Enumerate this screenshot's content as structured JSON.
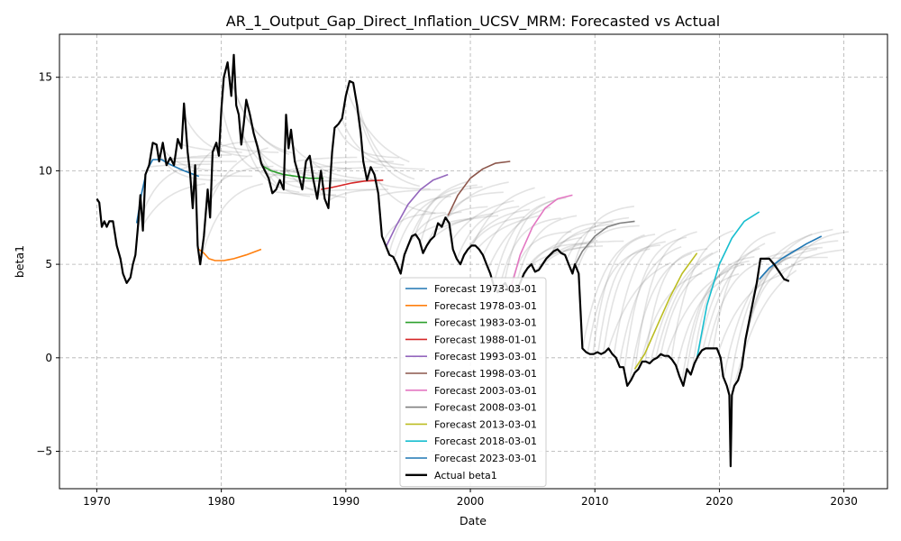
{
  "chart_data": {
    "type": "line",
    "title": "AR_1_Output_Gap_Direct_Inflation_UCSV_MRM: Forecasted vs Actual",
    "xlabel": "Date",
    "ylabel": "beta1",
    "xlim": [
      1967.0,
      2033.5
    ],
    "ylim": [
      -7.0,
      17.3
    ],
    "x_ticks": [
      1970,
      1980,
      1990,
      2000,
      2010,
      2020,
      2030
    ],
    "y_ticks": [
      -5,
      0,
      5,
      10,
      15
    ],
    "y_tick_labels": [
      "−5",
      "0",
      "5",
      "10",
      "15"
    ],
    "grid": true,
    "legend_position": "lower center",
    "actual": {
      "name": "Actual beta1",
      "color": "#000000",
      "points": [
        [
          1970.0,
          8.5
        ],
        [
          1970.2,
          8.3
        ],
        [
          1970.4,
          7.0
        ],
        [
          1970.6,
          7.3
        ],
        [
          1970.8,
          7.0
        ],
        [
          1971.0,
          7.3
        ],
        [
          1971.3,
          7.3
        ],
        [
          1971.6,
          6.0
        ],
        [
          1971.9,
          5.3
        ],
        [
          1972.1,
          4.5
        ],
        [
          1972.4,
          4.0
        ],
        [
          1972.7,
          4.3
        ],
        [
          1972.9,
          5.0
        ],
        [
          1973.1,
          5.5
        ],
        [
          1973.3,
          7.0
        ],
        [
          1973.5,
          8.7
        ],
        [
          1973.7,
          6.8
        ],
        [
          1973.9,
          9.8
        ],
        [
          1974.2,
          10.3
        ],
        [
          1974.5,
          11.5
        ],
        [
          1974.8,
          11.4
        ],
        [
          1975.0,
          10.5
        ],
        [
          1975.3,
          11.5
        ],
        [
          1975.6,
          10.3
        ],
        [
          1975.9,
          10.7
        ],
        [
          1976.2,
          10.3
        ],
        [
          1976.5,
          11.7
        ],
        [
          1976.8,
          11.2
        ],
        [
          1977.0,
          13.6
        ],
        [
          1977.3,
          11.0
        ],
        [
          1977.5,
          9.8
        ],
        [
          1977.7,
          8.0
        ],
        [
          1977.9,
          10.3
        ],
        [
          1978.1,
          6.0
        ],
        [
          1978.3,
          5.0
        ],
        [
          1978.6,
          6.5
        ],
        [
          1978.9,
          9.0
        ],
        [
          1979.1,
          7.5
        ],
        [
          1979.3,
          11.0
        ],
        [
          1979.6,
          11.5
        ],
        [
          1979.8,
          10.8
        ],
        [
          1980.0,
          13.3
        ],
        [
          1980.2,
          15.0
        ],
        [
          1980.5,
          15.8
        ],
        [
          1980.8,
          14.0
        ],
        [
          1981.0,
          16.2
        ],
        [
          1981.2,
          13.5
        ],
        [
          1981.4,
          13.0
        ],
        [
          1981.6,
          11.4
        ],
        [
          1981.8,
          12.5
        ],
        [
          1982.0,
          13.8
        ],
        [
          1982.3,
          13.0
        ],
        [
          1982.6,
          12.0
        ],
        [
          1982.9,
          11.3
        ],
        [
          1983.2,
          10.4
        ],
        [
          1983.5,
          10.0
        ],
        [
          1983.8,
          9.6
        ],
        [
          1984.1,
          8.8
        ],
        [
          1984.4,
          9.0
        ],
        [
          1984.7,
          9.5
        ],
        [
          1985.0,
          9.0
        ],
        [
          1985.2,
          13.0
        ],
        [
          1985.4,
          11.2
        ],
        [
          1985.6,
          12.2
        ],
        [
          1985.9,
          10.5
        ],
        [
          1986.2,
          9.8
        ],
        [
          1986.5,
          9.0
        ],
        [
          1986.8,
          10.5
        ],
        [
          1987.1,
          10.8
        ],
        [
          1987.4,
          9.5
        ],
        [
          1987.7,
          8.5
        ],
        [
          1988.0,
          10.0
        ],
        [
          1988.3,
          8.5
        ],
        [
          1988.6,
          8.0
        ],
        [
          1988.9,
          11.0
        ],
        [
          1989.1,
          12.3
        ],
        [
          1989.4,
          12.5
        ],
        [
          1989.7,
          12.8
        ],
        [
          1990.0,
          14.0
        ],
        [
          1990.3,
          14.8
        ],
        [
          1990.6,
          14.7
        ],
        [
          1990.9,
          13.5
        ],
        [
          1991.2,
          12.0
        ],
        [
          1991.4,
          10.5
        ],
        [
          1991.7,
          9.5
        ],
        [
          1992.0,
          10.2
        ],
        [
          1992.3,
          9.8
        ],
        [
          1992.6,
          8.8
        ],
        [
          1992.9,
          6.5
        ],
        [
          1993.2,
          6.0
        ],
        [
          1993.5,
          5.5
        ],
        [
          1993.8,
          5.4
        ],
        [
          1994.1,
          5.0
        ],
        [
          1994.4,
          4.5
        ],
        [
          1994.7,
          5.5
        ],
        [
          1995.0,
          6.0
        ],
        [
          1995.3,
          6.5
        ],
        [
          1995.6,
          6.6
        ],
        [
          1995.9,
          6.3
        ],
        [
          1996.2,
          5.6
        ],
        [
          1996.5,
          6.0
        ],
        [
          1996.8,
          6.3
        ],
        [
          1997.1,
          6.5
        ],
        [
          1997.4,
          7.2
        ],
        [
          1997.7,
          7.0
        ],
        [
          1998.0,
          7.5
        ],
        [
          1998.3,
          7.2
        ],
        [
          1998.6,
          5.8
        ],
        [
          1998.9,
          5.3
        ],
        [
          1999.2,
          5.0
        ],
        [
          1999.5,
          5.5
        ],
        [
          1999.8,
          5.8
        ],
        [
          2000.1,
          6.0
        ],
        [
          2000.4,
          6.0
        ],
        [
          2000.7,
          5.8
        ],
        [
          2001.0,
          5.5
        ],
        [
          2001.3,
          5.0
        ],
        [
          2001.6,
          4.5
        ],
        [
          2001.9,
          3.8
        ],
        [
          2002.2,
          3.5
        ],
        [
          2002.5,
          3.8
        ],
        [
          2002.8,
          4.0
        ],
        [
          2003.1,
          3.6
        ],
        [
          2003.4,
          3.5
        ],
        [
          2003.7,
          3.6
        ],
        [
          2004.0,
          4.0
        ],
        [
          2004.3,
          4.5
        ],
        [
          2004.6,
          4.8
        ],
        [
          2004.9,
          5.0
        ],
        [
          2005.2,
          4.6
        ],
        [
          2005.5,
          4.7
        ],
        [
          2005.8,
          5.0
        ],
        [
          2006.1,
          5.3
        ],
        [
          2006.4,
          5.5
        ],
        [
          2006.7,
          5.7
        ],
        [
          2007.0,
          5.8
        ],
        [
          2007.3,
          5.6
        ],
        [
          2007.6,
          5.5
        ],
        [
          2007.9,
          5.0
        ],
        [
          2008.2,
          4.5
        ],
        [
          2008.4,
          5.0
        ],
        [
          2008.7,
          4.5
        ],
        [
          2009.0,
          0.5
        ],
        [
          2009.3,
          0.3
        ],
        [
          2009.6,
          0.2
        ],
        [
          2009.9,
          0.2
        ],
        [
          2010.2,
          0.3
        ],
        [
          2010.5,
          0.2
        ],
        [
          2010.8,
          0.3
        ],
        [
          2011.1,
          0.5
        ],
        [
          2011.4,
          0.2
        ],
        [
          2011.7,
          0.0
        ],
        [
          2012.0,
          -0.5
        ],
        [
          2012.3,
          -0.5
        ],
        [
          2012.6,
          -1.5
        ],
        [
          2012.9,
          -1.2
        ],
        [
          2013.2,
          -0.8
        ],
        [
          2013.5,
          -0.6
        ],
        [
          2013.8,
          -0.2
        ],
        [
          2014.1,
          -0.2
        ],
        [
          2014.4,
          -0.3
        ],
        [
          2014.7,
          -0.1
        ],
        [
          2015.0,
          0.0
        ],
        [
          2015.3,
          0.2
        ],
        [
          2015.6,
          0.1
        ],
        [
          2015.9,
          0.1
        ],
        [
          2016.2,
          -0.1
        ],
        [
          2016.5,
          -0.4
        ],
        [
          2016.8,
          -1.0
        ],
        [
          2017.1,
          -1.5
        ],
        [
          2017.4,
          -0.6
        ],
        [
          2017.7,
          -0.9
        ],
        [
          2018.0,
          -0.3
        ],
        [
          2018.3,
          0.1
        ],
        [
          2018.6,
          0.4
        ],
        [
          2018.9,
          0.5
        ],
        [
          2019.2,
          0.5
        ],
        [
          2019.5,
          0.5
        ],
        [
          2019.8,
          0.5
        ],
        [
          2020.1,
          0.0
        ],
        [
          2020.3,
          -1.0
        ],
        [
          2020.6,
          -1.5
        ],
        [
          2020.8,
          -2.0
        ],
        [
          2020.9,
          -5.8
        ],
        [
          2021.0,
          -2.0
        ],
        [
          2021.2,
          -1.5
        ],
        [
          2021.5,
          -1.2
        ],
        [
          2021.8,
          -0.5
        ],
        [
          2022.1,
          1.0
        ],
        [
          2022.4,
          2.0
        ],
        [
          2022.7,
          3.0
        ],
        [
          2023.0,
          4.0
        ],
        [
          2023.3,
          5.3
        ],
        [
          2023.6,
          5.3
        ],
        [
          2024.0,
          5.3
        ],
        [
          2024.4,
          5.0
        ],
        [
          2024.8,
          4.6
        ],
        [
          2025.2,
          4.2
        ],
        [
          2025.6,
          4.1
        ]
      ]
    },
    "series": [
      {
        "name": "Forecast 1973-03-01",
        "color": "#1f77b4",
        "points": [
          [
            1973.2,
            7.2
          ],
          [
            1973.6,
            8.8
          ],
          [
            1974.0,
            10.0
          ],
          [
            1974.5,
            10.6
          ],
          [
            1975.2,
            10.6
          ],
          [
            1976.0,
            10.3
          ],
          [
            1977.0,
            10.0
          ],
          [
            1978.2,
            9.7
          ]
        ]
      },
      {
        "name": "Forecast 1978-03-01",
        "color": "#ff7f0e",
        "points": [
          [
            1978.2,
            5.8
          ],
          [
            1978.6,
            5.6
          ],
          [
            1979.0,
            5.3
          ],
          [
            1979.5,
            5.2
          ],
          [
            1980.2,
            5.2
          ],
          [
            1981.0,
            5.3
          ],
          [
            1982.0,
            5.5
          ],
          [
            1983.2,
            5.8
          ]
        ]
      },
      {
        "name": "Forecast 1983-03-01",
        "color": "#2ca02c",
        "points": [
          [
            1983.2,
            10.3
          ],
          [
            1984.0,
            10.0
          ],
          [
            1985.0,
            9.8
          ],
          [
            1986.0,
            9.7
          ],
          [
            1987.0,
            9.6
          ],
          [
            1988.2,
            9.6
          ]
        ]
      },
      {
        "name": "Forecast 1988-01-01",
        "color": "#d62728",
        "points": [
          [
            1988.0,
            9.0
          ],
          [
            1988.8,
            9.1
          ],
          [
            1989.5,
            9.2
          ],
          [
            1990.5,
            9.35
          ],
          [
            1991.5,
            9.45
          ],
          [
            1993.0,
            9.5
          ]
        ]
      },
      {
        "name": "Forecast 1993-03-01",
        "color": "#9467bd",
        "points": [
          [
            1993.2,
            5.9
          ],
          [
            1994.0,
            7.0
          ],
          [
            1995.0,
            8.2
          ],
          [
            1996.0,
            9.0
          ],
          [
            1997.0,
            9.5
          ],
          [
            1998.2,
            9.8
          ]
        ]
      },
      {
        "name": "Forecast 1998-03-01",
        "color": "#8c564b",
        "points": [
          [
            1998.2,
            7.6
          ],
          [
            1999.0,
            8.7
          ],
          [
            2000.0,
            9.6
          ],
          [
            2001.0,
            10.1
          ],
          [
            2002.0,
            10.4
          ],
          [
            2003.2,
            10.5
          ]
        ]
      },
      {
        "name": "Forecast 2003-03-01",
        "color": "#e377c2",
        "points": [
          [
            2003.2,
            3.6
          ],
          [
            2004.0,
            5.5
          ],
          [
            2005.0,
            7.0
          ],
          [
            2006.0,
            8.0
          ],
          [
            2007.0,
            8.5
          ],
          [
            2008.2,
            8.7
          ]
        ]
      },
      {
        "name": "Forecast 2008-03-01",
        "color": "#7f7f7f",
        "points": [
          [
            2008.2,
            4.7
          ],
          [
            2009.0,
            5.7
          ],
          [
            2010.0,
            6.5
          ],
          [
            2011.0,
            7.0
          ],
          [
            2012.0,
            7.2
          ],
          [
            2013.2,
            7.3
          ]
        ]
      },
      {
        "name": "Forecast 2013-03-01",
        "color": "#bcbd22",
        "points": [
          [
            2013.2,
            -0.6
          ],
          [
            2014.0,
            0.2
          ],
          [
            2015.0,
            1.7
          ],
          [
            2016.0,
            3.2
          ],
          [
            2017.0,
            4.5
          ],
          [
            2018.2,
            5.6
          ]
        ]
      },
      {
        "name": "Forecast 2018-03-01",
        "color": "#17becf",
        "points": [
          [
            2018.2,
            0.0
          ],
          [
            2019.0,
            2.8
          ],
          [
            2020.0,
            5.0
          ],
          [
            2021.0,
            6.4
          ],
          [
            2022.0,
            7.3
          ],
          [
            2023.2,
            7.8
          ]
        ]
      },
      {
        "name": "Forecast 2023-03-01",
        "color": "#1f77b4",
        "points": [
          [
            2023.2,
            4.2
          ],
          [
            2024.0,
            4.8
          ],
          [
            2025.0,
            5.3
          ],
          [
            2026.0,
            5.7
          ],
          [
            2027.0,
            6.1
          ],
          [
            2028.2,
            6.5
          ]
        ]
      }
    ],
    "background_forecasts": {
      "color": "#808080",
      "note_hidden": true
    }
  }
}
